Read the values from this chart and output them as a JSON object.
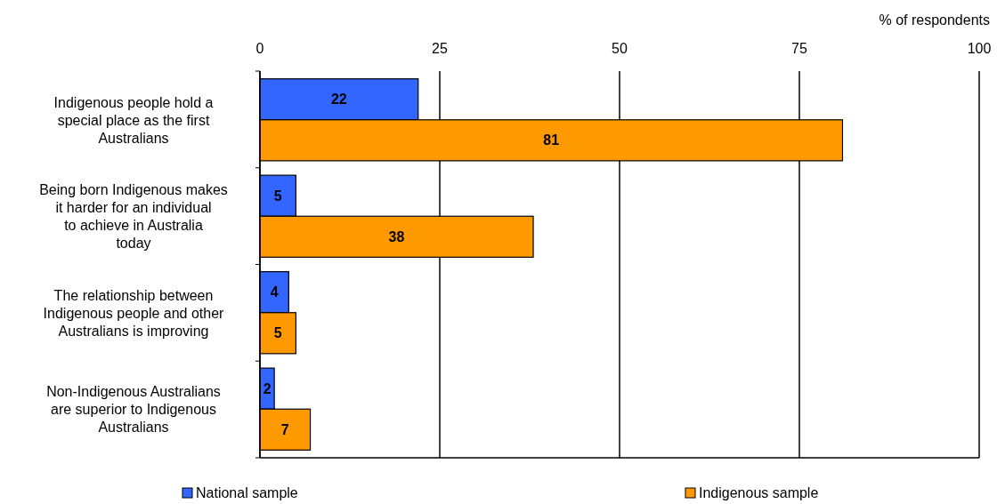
{
  "chart_data": {
    "type": "bar",
    "orientation": "horizontal",
    "xlabel": "% of respondents",
    "categories": [
      "Indigenous people hold a special place as the first Australians",
      "Being born Indigenous makes it harder for an individual to achieve in Australia today",
      "The relationship between Indigenous people and other Australians is improving",
      "Non-Indigenous Australians are superior to Indigenous Australians"
    ],
    "series": [
      {
        "name": "National sample",
        "color": "#3366ff",
        "values": [
          22,
          5,
          4,
          2
        ]
      },
      {
        "name": "Indigenous sample",
        "color": "#ff9900",
        "values": [
          81,
          38,
          5,
          7
        ]
      }
    ],
    "xlim": [
      0,
      100
    ],
    "xticks": [
      0,
      25,
      50,
      75,
      100
    ],
    "grid": "x",
    "data_labels": true,
    "legend": "bottom"
  }
}
